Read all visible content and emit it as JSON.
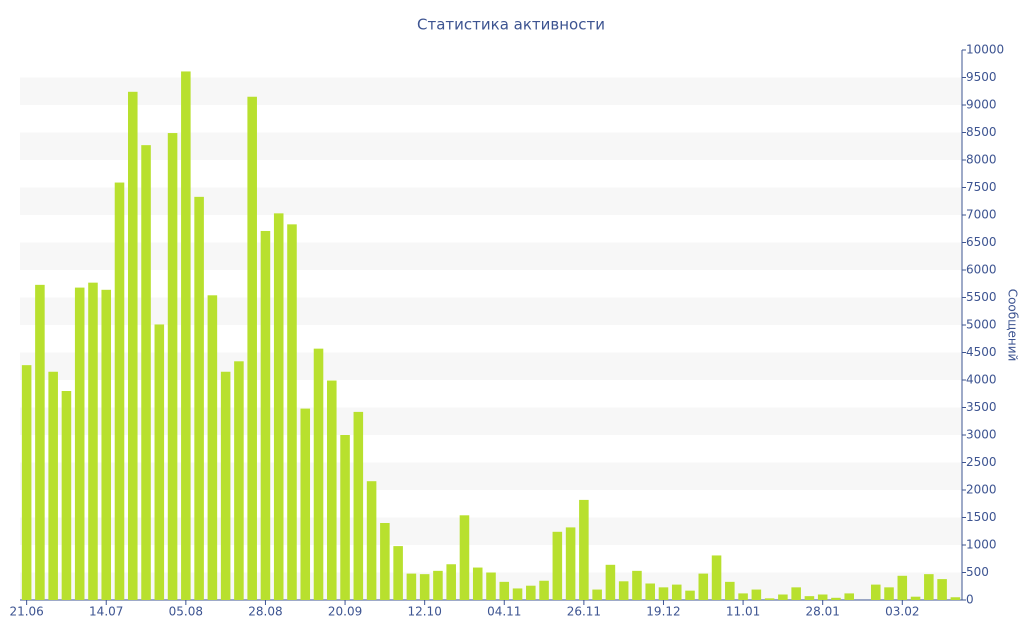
{
  "chart_data": {
    "type": "bar",
    "title": "Статистика активности",
    "y_label": "Сообщений",
    "categories": [
      "21.06",
      null,
      null,
      null,
      null,
      null,
      "14.07",
      null,
      null,
      null,
      null,
      null,
      "05.08",
      null,
      null,
      null,
      null,
      null,
      "28.08",
      null,
      null,
      null,
      null,
      null,
      "20.09",
      null,
      null,
      null,
      null,
      null,
      "12.10",
      null,
      null,
      null,
      null,
      null,
      "04.11",
      null,
      null,
      null,
      null,
      null,
      "26.11",
      null,
      null,
      null,
      null,
      null,
      "19.12",
      null,
      null,
      null,
      null,
      null,
      "11.01",
      null,
      null,
      null,
      null,
      null,
      "28.01",
      null,
      null,
      null,
      null,
      null,
      "03.02",
      null,
      null,
      null,
      null
    ],
    "values": [
      4270,
      5730,
      4150,
      3800,
      5680,
      5770,
      5640,
      7590,
      9240,
      8270,
      5010,
      8490,
      9610,
      7330,
      5540,
      4150,
      4340,
      9150,
      6710,
      7030,
      6830,
      3480,
      4570,
      3990,
      3000,
      3420,
      2160,
      1400,
      980,
      480,
      470,
      530,
      650,
      1540,
      590,
      500,
      330,
      210,
      260,
      350,
      1240,
      1320,
      1820,
      190,
      640,
      340,
      530,
      300,
      230,
      280,
      170,
      480,
      810,
      330,
      120,
      190,
      30,
      100,
      230,
      70,
      100,
      40,
      120,
      0,
      280,
      230,
      440,
      60,
      470,
      380,
      50
    ],
    "color": "#b8e02e",
    "ylim": [
      0,
      10000
    ],
    "yticks": [
      0,
      500,
      1000,
      1500,
      2000,
      2500,
      3000,
      3500,
      4000,
      4500,
      5000,
      5500,
      6000,
      6500,
      7000,
      7500,
      8000,
      8500,
      9000,
      9500,
      10000
    ],
    "grid": true
  }
}
